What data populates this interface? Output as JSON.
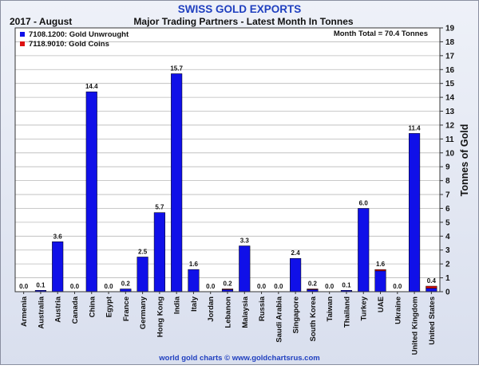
{
  "header": {
    "title": "SWISS GOLD EXPORTS",
    "period": "2017 - August",
    "subtitle": "Major Trading Partners - Latest Month In Tonnes",
    "month_total": "Month Total = 70.4 Tonnes"
  },
  "footer": {
    "credit": "world gold charts © www.goldchartsrus.com"
  },
  "colors": {
    "title": "#1f3fbf",
    "unwrought": "#1010e8",
    "coins": "#dd1111",
    "grid": "#b9b9b9",
    "background": "#ffffff"
  },
  "chart_data": {
    "type": "bar",
    "stacked": true,
    "title": "SWISS GOLD EXPORTS",
    "ylabel": "Tonnes of Gold",
    "ylim": [
      0,
      19
    ],
    "yticks": [
      0,
      1,
      2,
      3,
      4,
      5,
      6,
      7,
      8,
      9,
      10,
      11,
      12,
      13,
      14,
      15,
      16,
      17,
      18,
      19
    ],
    "y_axis_side": "right",
    "grid": true,
    "legend_position": "top-left",
    "categories": [
      "Armenia",
      "Australia",
      "Austria",
      "Canada",
      "China",
      "Egypt",
      "France",
      "Germany",
      "Hong Kong",
      "India",
      "Italy",
      "Jordan",
      "Lebanon",
      "Malaysia",
      "Russia",
      "Saudi Arabia",
      "Singapore",
      "South Korea",
      "Taiwan",
      "Thailand",
      "Turkey",
      "UAE",
      "Ukraine",
      "United Kingdom",
      "United States"
    ],
    "series": [
      {
        "name": "7108.1200: Gold Unwrought",
        "color": "#1010e8",
        "values": [
          0.0,
          0.1,
          3.6,
          0.0,
          14.4,
          0.0,
          0.2,
          2.5,
          5.7,
          15.7,
          1.6,
          0.0,
          0.15,
          3.3,
          0.0,
          0.0,
          2.4,
          0.15,
          0.0,
          0.1,
          6.0,
          1.5,
          0.0,
          11.4,
          0.25
        ]
      },
      {
        "name": "7118.9010: Gold Coins",
        "color": "#dd1111",
        "values": [
          0.0,
          0.0,
          0.0,
          0.0,
          0.0,
          0.0,
          0.0,
          0.0,
          0.0,
          0.0,
          0.0,
          0.0,
          0.05,
          0.0,
          0.0,
          0.0,
          0.0,
          0.05,
          0.0,
          0.0,
          0.0,
          0.1,
          0.0,
          0.0,
          0.15
        ]
      }
    ],
    "data_labels": [
      "0.0",
      "0.1",
      "3.6",
      "0.0",
      "14.4",
      "0.0",
      "0.2",
      "2.5",
      "5.7",
      "15.7",
      "1.6",
      "0.0",
      "0.2",
      "3.3",
      "0.0",
      "0.0",
      "2.4",
      "0.2",
      "0.0",
      "0.1",
      "6.0",
      "1.6",
      "0.0",
      "11.4",
      "0.4"
    ]
  }
}
